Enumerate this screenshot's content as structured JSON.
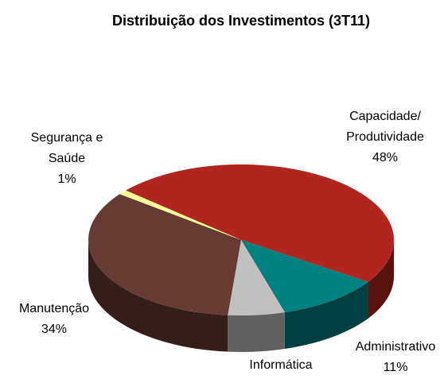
{
  "chart_data": {
    "type": "pie",
    "title": "Distribuição dos Investimentos (3T11)",
    "categories": [
      "Capacidade/\nProdutividade",
      "Administrativo",
      "Informática",
      "Manutenção",
      "Segurança e\nSaúde"
    ],
    "values": [
      48,
      11,
      6,
      34,
      1
    ],
    "value_labels": [
      "48%",
      "11%",
      null,
      "34%",
      "1%"
    ],
    "colors": [
      "#b0261e",
      "#008080",
      "#c0c0c0",
      "#673b34",
      "#ffff99"
    ],
    "start_angle": 221,
    "direction": "clockwise",
    "three_d": true
  }
}
